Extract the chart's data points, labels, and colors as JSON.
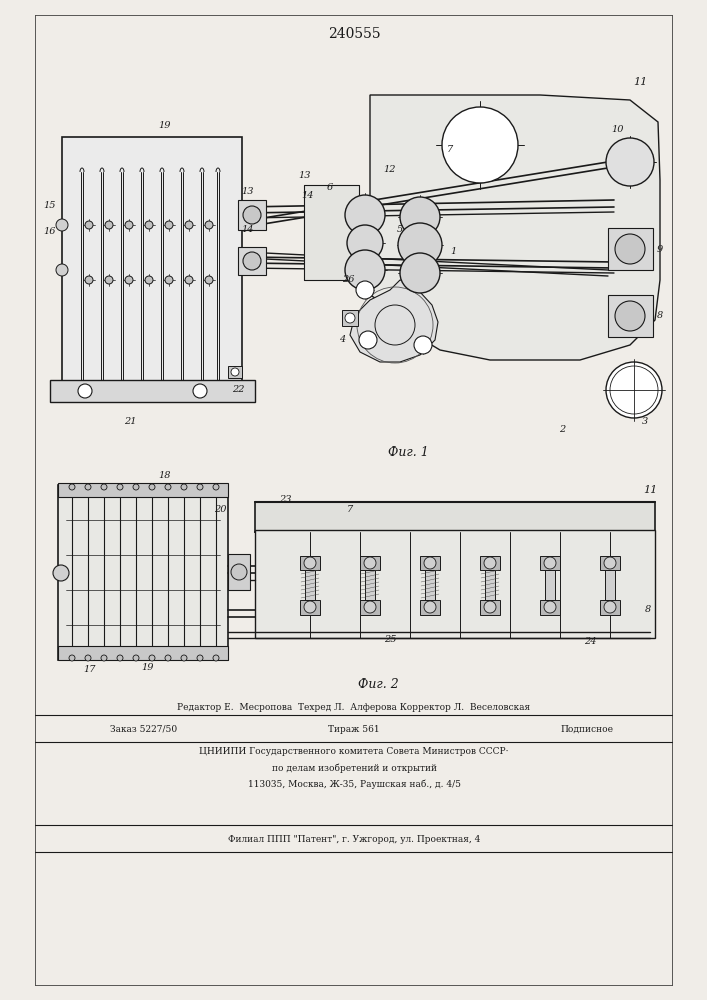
{
  "patent_number": "240555",
  "bg": "#f0ede8",
  "lc": "#1a1a1a",
  "fig1_caption": "Фиг. 1",
  "fig2_caption": "Фиг. 2",
  "footer_editor": "Редактор Е.  Месропова  Техред Л.  Алферова Корректор Л.  Веселовская",
  "footer_order": "Заказ 5227/50",
  "footer_tirazh": "Тираж 561",
  "footer_podp": "Подписное",
  "footer_org1": "ЦНИИПИ Государственного комитета Совета Министров СССР·",
  "footer_org2": "по делам изобретений и открытий",
  "footer_addr": "113035, Москва, Ж-35, Раушская наб., д. 4/5",
  "footer_branch": "Филиал ППП \"Патент\", г. Ужгород, ул. Проектная, 4"
}
